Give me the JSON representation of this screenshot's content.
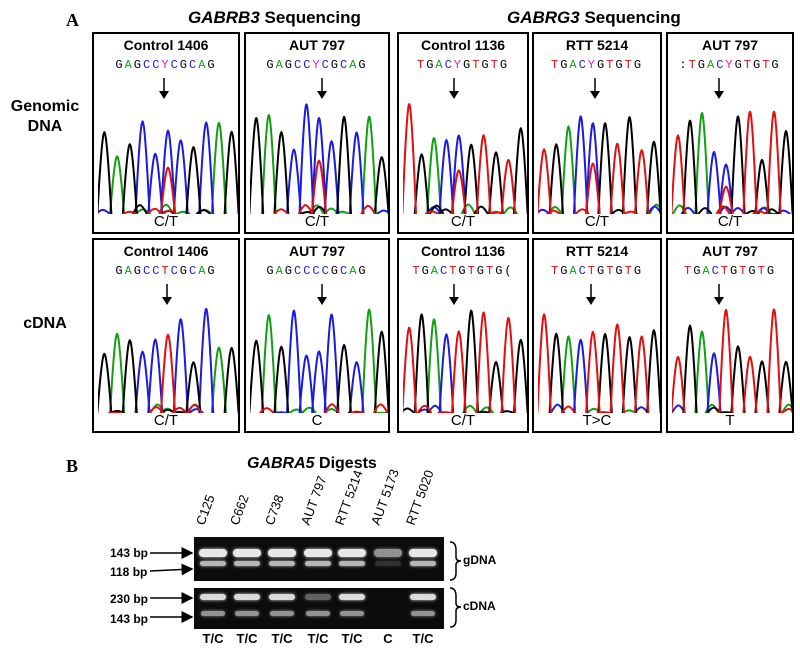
{
  "panel_a_letter": "A",
  "panel_b_letter": "B",
  "gabrb3_title_gene": "GABRB3",
  "gabrb3_title_rest": "Sequencing",
  "gabrg3_title_gene": "GABRG3",
  "gabrg3_title_rest": "Sequencing",
  "row_labels": {
    "genomic_line1": "Genomic",
    "genomic_line2": "DNA",
    "cdna": "cDNA"
  },
  "genomic_boxes": [
    {
      "title": "Control 1406",
      "seq": "GAGCCYCGCAG",
      "call": "C/T"
    },
    {
      "title": "AUT 797",
      "seq": "GAGCCYCGCAG",
      "call": "C/T"
    },
    {
      "title": "Control 1136",
      "seq": "TGACYGTGTG",
      "call": "C/T"
    },
    {
      "title": "RTT 5214",
      "seq": "TGACYGTGTG",
      "call": "C/T"
    },
    {
      "title": "AUT 797",
      "seq": ":TGACYGTGTG",
      "call": "C/T"
    }
  ],
  "cdna_boxes": [
    {
      "title": "Control 1406",
      "seq": "GAGCCTCGCAG",
      "call": "C/T"
    },
    {
      "title": "AUT 797",
      "seq": "GAGCCCCGCAG",
      "call": "C"
    },
    {
      "title": "Control 1136",
      "seq": "TGACTGTGTG(",
      "call": "C/T"
    },
    {
      "title": "RTT 5214",
      "seq": "TGACTGTGTG",
      "call": "T>C"
    },
    {
      "title": "AUT 797",
      "seq": "TGACTGTGTG",
      "call": "T"
    }
  ],
  "digest_title_gene": "GABRA5",
  "digest_title_rest": "Digests",
  "lanes": [
    "C125",
    "C662",
    "C738",
    "AUT 797",
    "RTT 5214",
    "AUT 5173",
    "RTT 5020"
  ],
  "genotypes": [
    "T/C",
    "T/C",
    "T/C",
    "T/C",
    "T/C",
    "C",
    "T/C"
  ],
  "gdna_bands": {
    "upper": "143 bp",
    "lower": "118 bp",
    "label": "gDNA"
  },
  "cdna_bands": {
    "upper": "230 bp",
    "lower": "143 bp",
    "label": "cDNA"
  },
  "colors": {
    "A": "#11a011",
    "C": "#1a1ae0",
    "G": "#000000",
    "T": "#e01010"
  }
}
